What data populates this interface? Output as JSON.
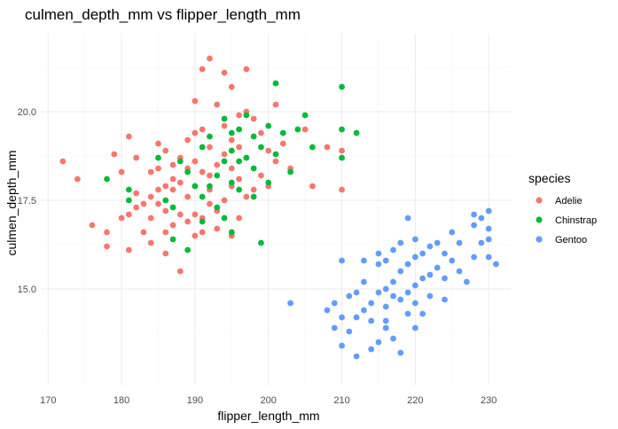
{
  "chart_data": {
    "type": "scatter",
    "title": "culmen_depth_mm vs flipper_length_mm",
    "xlabel": "flipper_length_mm",
    "ylabel": "culmen_depth_mm",
    "xlim": [
      169,
      233
    ],
    "ylim": [
      12.3,
      22.2
    ],
    "x_ticks": [
      170,
      180,
      190,
      200,
      210,
      220,
      230
    ],
    "x_tick_labels": [
      "170",
      "180",
      "190",
      "200",
      "210",
      "220",
      "230"
    ],
    "y_ticks": [
      15.0,
      17.5,
      20.0
    ],
    "y_tick_labels": [
      "15.0",
      "17.5",
      "20.0"
    ],
    "grid": true,
    "legend": {
      "title": "species",
      "position": "right"
    },
    "series": [
      {
        "name": "Adelie",
        "color": "#F8766D",
        "points": [
          [
            172,
            18.6
          ],
          [
            174,
            18.1
          ],
          [
            176,
            16.8
          ],
          [
            178,
            16.2
          ],
          [
            178,
            16.6
          ],
          [
            179,
            18.8
          ],
          [
            180,
            18.3
          ],
          [
            180,
            17.0
          ],
          [
            181,
            19.3
          ],
          [
            181,
            17.1
          ],
          [
            181,
            16.1
          ],
          [
            182,
            18.7
          ],
          [
            182,
            17.7
          ],
          [
            182,
            17.3
          ],
          [
            183,
            17.4
          ],
          [
            183,
            16.6
          ],
          [
            184,
            18.3
          ],
          [
            184,
            17.6
          ],
          [
            184,
            16.3
          ],
          [
            184,
            17.0
          ],
          [
            185,
            18.4
          ],
          [
            185,
            17.8
          ],
          [
            185,
            17.4
          ],
          [
            185,
            19.1
          ],
          [
            186,
            18.9
          ],
          [
            186,
            17.9
          ],
          [
            186,
            16.6
          ],
          [
            186,
            17.2
          ],
          [
            186,
            16.0
          ],
          [
            187,
            18.5
          ],
          [
            187,
            17.8
          ],
          [
            187,
            16.8
          ],
          [
            187,
            18.1
          ],
          [
            188,
            18.7
          ],
          [
            188,
            18.0
          ],
          [
            188,
            17.1
          ],
          [
            188,
            15.5
          ],
          [
            189,
            19.2
          ],
          [
            189,
            18.4
          ],
          [
            189,
            17.6
          ],
          [
            189,
            16.9
          ],
          [
            190,
            18.6
          ],
          [
            190,
            17.9
          ],
          [
            190,
            17.1
          ],
          [
            190,
            19.4
          ],
          [
            190,
            16.5
          ],
          [
            190,
            20.3
          ],
          [
            191,
            18.3
          ],
          [
            191,
            17.0
          ],
          [
            191,
            21.2
          ],
          [
            191,
            19.5
          ],
          [
            191,
            16.6
          ],
          [
            192,
            19.0
          ],
          [
            192,
            18.2
          ],
          [
            192,
            17.8
          ],
          [
            192,
            17.4
          ],
          [
            192,
            21.5
          ],
          [
            193,
            20.2
          ],
          [
            193,
            18.5
          ],
          [
            193,
            17.2
          ],
          [
            193,
            16.7
          ],
          [
            194,
            19.6
          ],
          [
            194,
            18.8
          ],
          [
            194,
            17.5
          ],
          [
            194,
            21.1
          ],
          [
            195,
            19.2
          ],
          [
            195,
            18.4
          ],
          [
            195,
            17.9
          ],
          [
            195,
            16.5
          ],
          [
            195,
            20.7
          ],
          [
            196,
            19.9
          ],
          [
            196,
            19.0
          ],
          [
            196,
            18.1
          ],
          [
            196,
            17.0
          ],
          [
            197,
            20.0
          ],
          [
            197,
            18.7
          ],
          [
            197,
            17.6
          ],
          [
            197,
            21.2
          ],
          [
            198,
            19.8
          ],
          [
            198,
            19.3
          ],
          [
            198,
            17.8
          ],
          [
            199,
            19.4
          ],
          [
            199,
            18.2
          ],
          [
            200,
            18.9
          ],
          [
            200,
            17.9
          ],
          [
            201,
            20.2
          ],
          [
            201,
            18.6
          ],
          [
            202,
            19.1
          ],
          [
            203,
            18.4
          ],
          [
            205,
            19.5
          ],
          [
            206,
            17.9
          ],
          [
            208,
            19.0
          ],
          [
            210,
            18.9
          ],
          [
            210,
            17.8
          ]
        ]
      },
      {
        "name": "Chinstrap",
        "color": "#00BA38",
        "points": [
          [
            178,
            18.1
          ],
          [
            181,
            17.8
          ],
          [
            181,
            17.5
          ],
          [
            185,
            18.7
          ],
          [
            186,
            17.5
          ],
          [
            187,
            16.4
          ],
          [
            187,
            17.3
          ],
          [
            188,
            18.6
          ],
          [
            189,
            18.3
          ],
          [
            189,
            16.1
          ],
          [
            190,
            17.9
          ],
          [
            191,
            19.0
          ],
          [
            191,
            17.6
          ],
          [
            191,
            16.9
          ],
          [
            192,
            17.9
          ],
          [
            192,
            19.3
          ],
          [
            193,
            18.2
          ],
          [
            193,
            17.3
          ],
          [
            194,
            19.8
          ],
          [
            194,
            18.6
          ],
          [
            194,
            17.0
          ],
          [
            195,
            19.4
          ],
          [
            195,
            18.9
          ],
          [
            195,
            18.0
          ],
          [
            196,
            19.5
          ],
          [
            196,
            18.6
          ],
          [
            196,
            17.8
          ],
          [
            197,
            19.9
          ],
          [
            197,
            18.7
          ],
          [
            198,
            19.3
          ],
          [
            198,
            18.4
          ],
          [
            198,
            17.6
          ],
          [
            199,
            19.0
          ],
          [
            200,
            19.6
          ],
          [
            200,
            18.0
          ],
          [
            201,
            20.8
          ],
          [
            201,
            18.8
          ],
          [
            202,
            19.4
          ],
          [
            203,
            18.3
          ],
          [
            204,
            19.5
          ],
          [
            205,
            19.9
          ],
          [
            206,
            19.0
          ],
          [
            210,
            20.7
          ],
          [
            210,
            19.5
          ],
          [
            210,
            18.7
          ],
          [
            212,
            19.4
          ],
          [
            199,
            16.3
          ],
          [
            195,
            16.6
          ]
        ]
      },
      {
        "name": "Gentoo",
        "color": "#619CFF",
        "points": [
          [
            203,
            14.6
          ],
          [
            208,
            14.4
          ],
          [
            209,
            13.9
          ],
          [
            209,
            14.6
          ],
          [
            210,
            14.2
          ],
          [
            210,
            13.4
          ],
          [
            210,
            15.8
          ],
          [
            211,
            14.8
          ],
          [
            211,
            13.8
          ],
          [
            212,
            14.2
          ],
          [
            212,
            13.1
          ],
          [
            212,
            14.9
          ],
          [
            213,
            14.4
          ],
          [
            213,
            15.2
          ],
          [
            213,
            15.8
          ],
          [
            214,
            14.6
          ],
          [
            214,
            13.3
          ],
          [
            214,
            14.1
          ],
          [
            215,
            14.9
          ],
          [
            215,
            15.7
          ],
          [
            215,
            13.5
          ],
          [
            215,
            16.0
          ],
          [
            216,
            14.5
          ],
          [
            216,
            15.0
          ],
          [
            216,
            14.1
          ],
          [
            216,
            15.8
          ],
          [
            216,
            13.9
          ],
          [
            217,
            15.2
          ],
          [
            217,
            14.8
          ],
          [
            217,
            16.1
          ],
          [
            217,
            13.6
          ],
          [
            218,
            15.5
          ],
          [
            218,
            14.7
          ],
          [
            218,
            16.3
          ],
          [
            218,
            13.2
          ],
          [
            219,
            15.7
          ],
          [
            219,
            14.9
          ],
          [
            219,
            17.0
          ],
          [
            219,
            14.3
          ],
          [
            220,
            15.9
          ],
          [
            220,
            15.1
          ],
          [
            220,
            14.6
          ],
          [
            220,
            16.4
          ],
          [
            220,
            13.9
          ],
          [
            221,
            16.0
          ],
          [
            221,
            15.3
          ],
          [
            221,
            14.3
          ],
          [
            222,
            16.2
          ],
          [
            222,
            15.4
          ],
          [
            222,
            14.8
          ],
          [
            223,
            16.3
          ],
          [
            223,
            15.6
          ],
          [
            224,
            16.0
          ],
          [
            224,
            15.3
          ],
          [
            224,
            14.7
          ],
          [
            225,
            16.6
          ],
          [
            225,
            15.8
          ],
          [
            226,
            16.3
          ],
          [
            226,
            15.5
          ],
          [
            227,
            15.2
          ],
          [
            228,
            17.1
          ],
          [
            228,
            16.8
          ],
          [
            228,
            15.9
          ],
          [
            229,
            17.0
          ],
          [
            229,
            16.3
          ],
          [
            230,
            17.2
          ],
          [
            230,
            16.4
          ],
          [
            230,
            15.9
          ],
          [
            230,
            16.7
          ],
          [
            231,
            15.7
          ]
        ]
      }
    ]
  }
}
